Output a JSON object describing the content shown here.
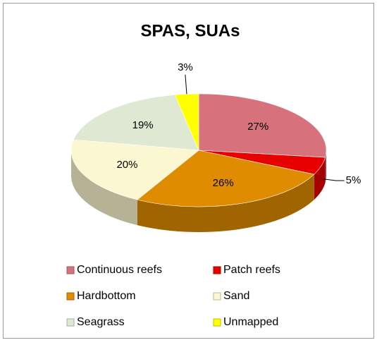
{
  "chart_data": {
    "type": "pie3d",
    "title": "SPAS, SUAs",
    "categories": [
      "Continuous reefs",
      "Patch reefs",
      "Hardbottom",
      "Sand",
      "Seagrass",
      "Unmapped"
    ],
    "values": [
      27,
      5,
      26,
      20,
      19,
      3
    ],
    "value_labels": [
      "27%",
      "5%",
      "26%",
      "20%",
      "19%",
      "3%"
    ],
    "colors": [
      "#d7727c",
      "#e60000",
      "#e08c00",
      "#fbf7d0",
      "#dfe8d2",
      "#ffff00"
    ],
    "legend": "bottom"
  }
}
